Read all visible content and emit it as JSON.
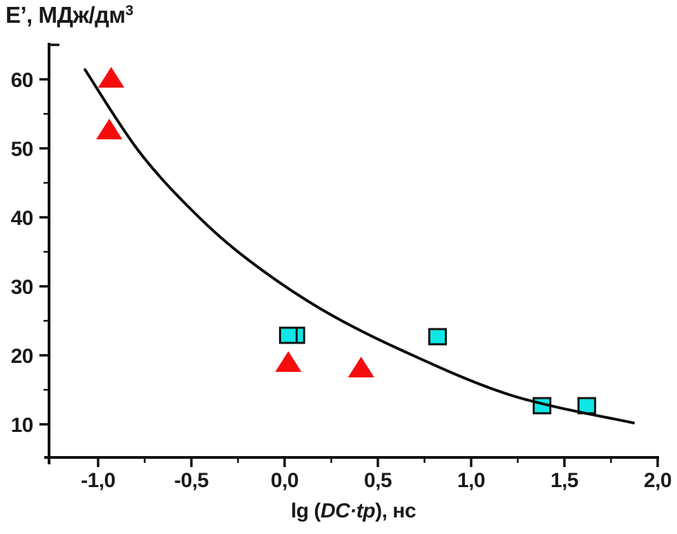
{
  "figure": {
    "background": "#ffffff",
    "text_color": "#1a1a1a",
    "y_axis_title": {
      "base": "Е’, МДж/дм",
      "sup": "3",
      "full": "Е’, МДж/дм³"
    },
    "x_axis_title": {
      "prefix": "lg (",
      "italic": "DC·tp",
      "suffix": "), нс",
      "full": "lg (DC·tp), нс"
    }
  },
  "chart_data": {
    "type": "scatter",
    "title": "",
    "xlabel": "lg (DC·tp), нс",
    "ylabel": "Е’, МДж/дм³",
    "xlim": [
      -1.263,
      2.0
    ],
    "ylim": [
      5.2,
      65.0
    ],
    "grid": false,
    "legend": false,
    "axis_color": "#111111",
    "x_axis": {
      "major_ticks": [
        -1.0,
        -0.5,
        0.0,
        0.5,
        1.0,
        1.5,
        2.0
      ],
      "tick_labels": [
        "-1,0",
        "-0,5",
        "0,0",
        "0,5",
        "1,0",
        "1,5",
        "2,0"
      ],
      "minor_ticks": [
        -0.75,
        -0.25,
        0.25,
        0.75,
        1.25,
        1.75
      ]
    },
    "y_axis": {
      "major_ticks": [
        60,
        50,
        40,
        30,
        20,
        10
      ],
      "tick_labels": [
        "60",
        "50",
        "40",
        "30",
        "20",
        "10"
      ],
      "minor_ticks": [
        55,
        45,
        35,
        25,
        15
      ],
      "end_tick": 65
    },
    "series": [
      {
        "name": "red-triangles",
        "marker": "triangle",
        "color": "#f50d0d",
        "points": [
          [
            -0.93,
            60.2
          ],
          [
            -0.94,
            52.7
          ],
          [
            0.02,
            19.0
          ],
          [
            0.41,
            18.2
          ]
        ]
      },
      {
        "name": "cyan-squares",
        "marker": "square",
        "color": "#0fe6e6",
        "edge_color": "#111111",
        "points": [
          [
            0.02,
            22.9
          ],
          [
            0.06,
            22.9
          ],
          [
            0.82,
            22.7
          ],
          [
            1.38,
            12.7
          ],
          [
            1.62,
            12.7
          ]
        ]
      }
    ],
    "fit_curve": {
      "color": "#0d0d0d",
      "width": 4,
      "points": [
        [
          -1.07,
          61.4
        ],
        [
          -0.785,
          49.7
        ],
        [
          -0.489,
          40.8
        ],
        [
          -0.193,
          33.8
        ],
        [
          0.189,
          26.8
        ],
        [
          0.622,
          20.8
        ],
        [
          1.215,
          14.2
        ],
        [
          1.87,
          10.2
        ]
      ]
    }
  }
}
